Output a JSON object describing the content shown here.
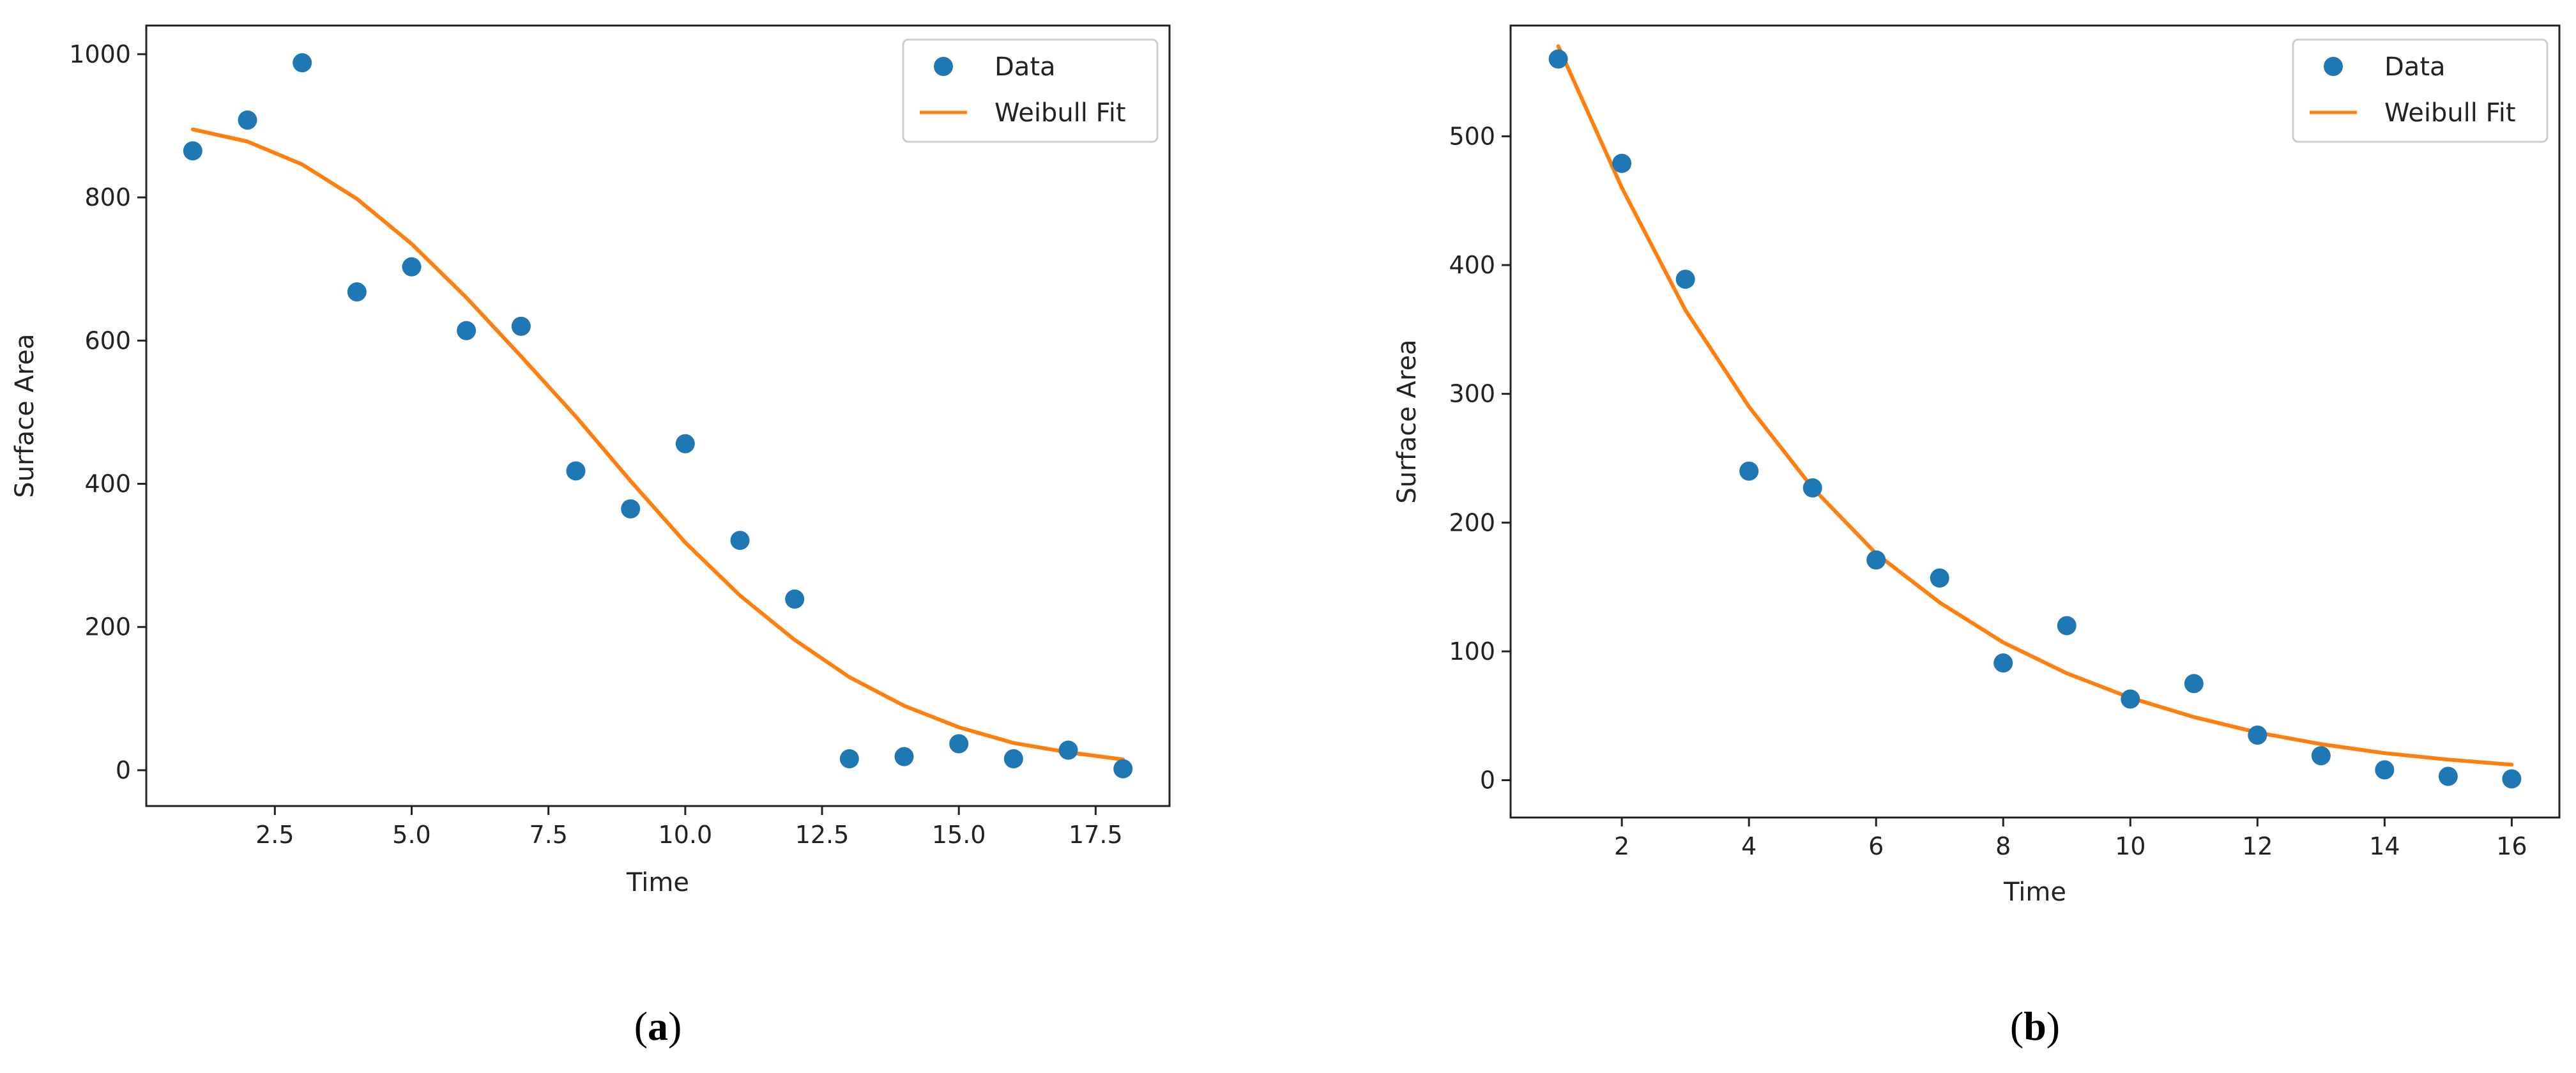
{
  "figure": {
    "panel_labels": [
      {
        "open": "(",
        "letter": "a",
        "close": ")"
      },
      {
        "open": "(",
        "letter": "b",
        "close": ")"
      }
    ]
  },
  "colors": {
    "data": "#1f77b4",
    "fit": "#ff7f0e",
    "axis": "#222222",
    "legend_border": "#cccccc"
  },
  "chart_data": [
    {
      "type": "scatter",
      "xlabel": "Time",
      "ylabel": "Surface Area",
      "xlim": [
        0.15,
        18.85
      ],
      "ylim": [
        -50,
        1040
      ],
      "xticks": [
        2.5,
        5.0,
        7.5,
        10.0,
        12.5,
        15.0,
        17.5
      ],
      "xtick_labels": [
        "2.5",
        "5.0",
        "7.5",
        "10.0",
        "12.5",
        "15.0",
        "17.5"
      ],
      "yticks": [
        0,
        200,
        400,
        600,
        800,
        1000
      ],
      "ytick_labels": [
        "0",
        "200",
        "400",
        "600",
        "800",
        "1000"
      ],
      "legend_position": "top-right",
      "series": [
        {
          "name": "Data",
          "kind": "scatter",
          "x": [
            1,
            2,
            3,
            4,
            5,
            6,
            7,
            8,
            9,
            10,
            11,
            12,
            13,
            14,
            15,
            16,
            17,
            18
          ],
          "values": [
            865,
            908,
            988,
            668,
            703,
            614,
            620,
            418,
            365,
            456,
            321,
            239,
            16,
            19,
            37,
            16,
            28,
            2
          ]
        },
        {
          "name": "Weibull Fit",
          "kind": "line",
          "x": [
            1,
            2,
            3,
            4,
            5,
            6,
            7,
            8,
            9,
            10,
            11,
            12,
            13,
            14,
            15,
            16,
            17,
            18
          ],
          "values": [
            895,
            878,
            846,
            798,
            735,
            660,
            578,
            494,
            404,
            318,
            244,
            182,
            130,
            90,
            60,
            38,
            25,
            15
          ]
        }
      ]
    },
    {
      "type": "scatter",
      "xlabel": "Time",
      "ylabel": "Surface Area",
      "xlim": [
        0.25,
        16.75
      ],
      "ylim": [
        -29,
        586
      ],
      "xticks": [
        2,
        4,
        6,
        8,
        10,
        12,
        14,
        16
      ],
      "xtick_labels": [
        "2",
        "4",
        "6",
        "8",
        "10",
        "12",
        "14",
        "16"
      ],
      "yticks": [
        0,
        100,
        200,
        300,
        400,
        500
      ],
      "ytick_labels": [
        "0",
        "100",
        "200",
        "300",
        "400",
        "500"
      ],
      "legend_position": "top-right",
      "series": [
        {
          "name": "Data",
          "kind": "scatter",
          "x": [
            1,
            2,
            3,
            4,
            5,
            6,
            7,
            8,
            9,
            10,
            11,
            12,
            13,
            14,
            15,
            16
          ],
          "values": [
            560,
            479,
            389,
            240,
            227,
            171,
            157,
            91,
            120,
            63,
            75,
            35,
            19,
            8,
            3,
            1
          ]
        },
        {
          "name": "Weibull Fit",
          "kind": "line",
          "x": [
            1,
            2,
            3,
            4,
            5,
            6,
            7,
            8,
            9,
            10,
            11,
            12,
            13,
            14,
            15,
            16
          ],
          "values": [
            570,
            460,
            365,
            290,
            227,
            176,
            138,
            107,
            83,
            64,
            49,
            37,
            28,
            21,
            16,
            12
          ]
        }
      ]
    }
  ]
}
